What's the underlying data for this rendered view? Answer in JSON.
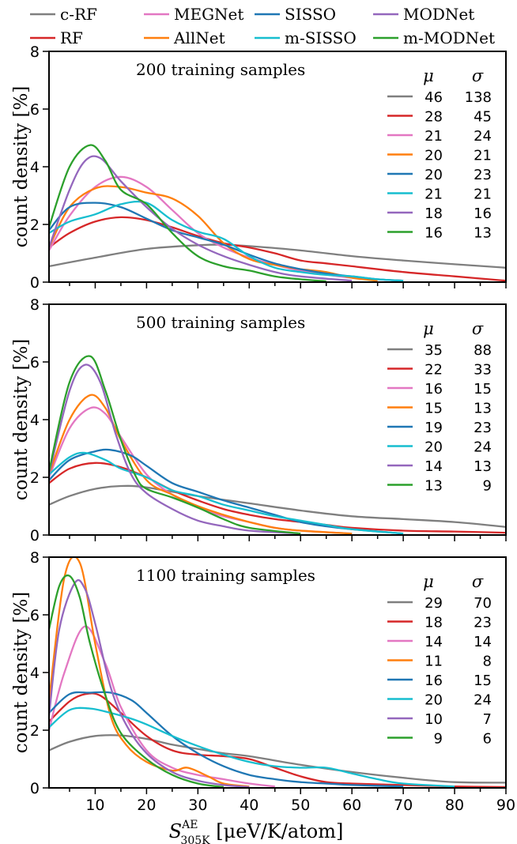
{
  "figure": {
    "x_axis_label_main": "S",
    "x_axis_label_sup": "AE",
    "x_axis_label_sub": "305K",
    "x_axis_label_units": " [μeV/K/atom]",
    "y_axis_label": "count density [%]",
    "mu_header": "μ",
    "sigma_header": "σ"
  },
  "legend": [
    {
      "label": "c-RF",
      "color": "#7f7f7f"
    },
    {
      "label": "MEGNet",
      "color": "#e377c2"
    },
    {
      "label": "SISSO",
      "color": "#1f77b4"
    },
    {
      "label": "MODNet",
      "color": "#9467bd"
    },
    {
      "label": "RF",
      "color": "#d62728"
    },
    {
      "label": "AllNet",
      "color": "#ff7f0e"
    },
    {
      "label": "m-SISSO",
      "color": "#17becf"
    },
    {
      "label": "m-MODNet",
      "color": "#2ca02c"
    }
  ],
  "chart_data": [
    {
      "type": "line",
      "title": "200 training samples",
      "xlabel": "",
      "ylabel": "count density [%]",
      "xlim": [
        1,
        90
      ],
      "ylim": [
        0,
        8
      ],
      "x_ticks": [
        "10",
        "20",
        "30",
        "40",
        "50",
        "60",
        "70",
        "80",
        "90"
      ],
      "y_ticks": [
        "0",
        "2",
        "4",
        "6",
        "8"
      ],
      "series": [
        {
          "name": "c-RF",
          "color": "#7f7f7f",
          "mu": "46",
          "sigma": "138",
          "x": [
            1,
            10,
            20,
            30,
            35,
            40,
            50,
            60,
            70,
            80,
            90
          ],
          "y": [
            0.55,
            0.85,
            1.15,
            1.28,
            1.3,
            1.25,
            1.1,
            0.9,
            0.75,
            0.62,
            0.5
          ]
        },
        {
          "name": "RF",
          "color": "#d62728",
          "mu": "28",
          "sigma": "45",
          "x": [
            1,
            5,
            10,
            15,
            20,
            25,
            30,
            35,
            40,
            45,
            50,
            55,
            60,
            70,
            80,
            90
          ],
          "y": [
            1.2,
            1.7,
            2.1,
            2.25,
            2.15,
            1.9,
            1.6,
            1.35,
            1.2,
            1.0,
            0.75,
            0.65,
            0.55,
            0.35,
            0.2,
            0.05
          ]
        },
        {
          "name": "MEGNet",
          "color": "#e377c2",
          "mu": "21",
          "sigma": "24",
          "x": [
            1,
            5,
            10,
            15,
            20,
            25,
            30,
            35,
            40,
            45,
            50,
            60,
            70
          ],
          "y": [
            1.1,
            2.3,
            3.3,
            3.65,
            3.3,
            2.5,
            1.7,
            1.2,
            0.85,
            0.6,
            0.4,
            0.15,
            0.05
          ]
        },
        {
          "name": "AllNet",
          "color": "#ff7f0e",
          "mu": "20",
          "sigma": "21",
          "x": [
            1,
            5,
            10,
            15,
            20,
            25,
            30,
            35,
            40,
            45,
            50,
            55,
            60,
            65
          ],
          "y": [
            1.2,
            2.6,
            3.25,
            3.3,
            3.1,
            2.9,
            2.3,
            1.35,
            0.8,
            0.6,
            0.45,
            0.35,
            0.15,
            0.05
          ]
        },
        {
          "name": "SISSO",
          "color": "#1f77b4",
          "mu": "20",
          "sigma": "23",
          "x": [
            1,
            5,
            10,
            15,
            20,
            25,
            30,
            35,
            40,
            45,
            50,
            55,
            60,
            65,
            70
          ],
          "y": [
            1.8,
            2.6,
            2.75,
            2.6,
            2.2,
            1.8,
            1.55,
            1.3,
            0.95,
            0.65,
            0.45,
            0.3,
            0.2,
            0.1,
            0.05
          ]
        },
        {
          "name": "m-SISSO",
          "color": "#17becf",
          "mu": "21",
          "sigma": "21",
          "x": [
            1,
            5,
            10,
            15,
            20,
            25,
            30,
            35,
            40,
            45,
            50,
            55,
            60,
            65,
            70
          ],
          "y": [
            1.7,
            2.1,
            2.35,
            2.7,
            2.75,
            2.15,
            1.75,
            1.5,
            0.9,
            0.5,
            0.35,
            0.25,
            0.2,
            0.1,
            0.05
          ]
        },
        {
          "name": "MODNet",
          "color": "#9467bd",
          "mu": "18",
          "sigma": "16",
          "x": [
            1,
            5,
            8,
            11,
            15,
            20,
            25,
            30,
            35,
            40,
            45,
            50,
            60
          ],
          "y": [
            1.2,
            3.2,
            4.2,
            4.3,
            3.5,
            2.6,
            1.85,
            1.3,
            0.9,
            0.6,
            0.35,
            0.2,
            0.05
          ]
        },
        {
          "name": "m-MODNet",
          "color": "#2ca02c",
          "mu": "16",
          "sigma": "13",
          "x": [
            1,
            5,
            9,
            12,
            15,
            20,
            25,
            30,
            35,
            40,
            45,
            50,
            55
          ],
          "y": [
            1.9,
            4.0,
            4.75,
            4.2,
            3.2,
            2.7,
            1.7,
            0.9,
            0.55,
            0.4,
            0.2,
            0.1,
            0.03
          ]
        }
      ]
    },
    {
      "type": "line",
      "title": "500 training samples",
      "xlabel": "",
      "ylabel": "count density [%]",
      "xlim": [
        1,
        90
      ],
      "ylim": [
        0,
        8
      ],
      "x_ticks": [
        "10",
        "20",
        "30",
        "40",
        "50",
        "60",
        "70",
        "80",
        "90"
      ],
      "y_ticks": [
        "0",
        "2",
        "4",
        "6",
        "8"
      ],
      "series": [
        {
          "name": "c-RF",
          "color": "#7f7f7f",
          "mu": "35",
          "sigma": "88",
          "x": [
            1,
            5,
            10,
            15,
            20,
            30,
            40,
            50,
            60,
            70,
            80,
            90
          ],
          "y": [
            1.05,
            1.35,
            1.6,
            1.7,
            1.65,
            1.35,
            1.1,
            0.85,
            0.65,
            0.55,
            0.45,
            0.28
          ]
        },
        {
          "name": "RF",
          "color": "#d62728",
          "mu": "22",
          "sigma": "33",
          "x": [
            1,
            5,
            10,
            15,
            20,
            25,
            30,
            35,
            40,
            45,
            50,
            55,
            60,
            70,
            80,
            90
          ],
          "y": [
            1.8,
            2.3,
            2.5,
            2.35,
            2.0,
            1.55,
            1.2,
            0.9,
            0.7,
            0.55,
            0.45,
            0.35,
            0.25,
            0.15,
            0.12,
            0.08
          ]
        },
        {
          "name": "MEGNet",
          "color": "#e377c2",
          "mu": "16",
          "sigma": "15",
          "x": [
            1,
            5,
            9,
            12,
            15,
            20,
            25,
            30,
            35,
            40,
            45,
            50,
            60
          ],
          "y": [
            2.0,
            3.7,
            4.4,
            4.2,
            3.4,
            2.1,
            1.4,
            0.95,
            0.65,
            0.45,
            0.25,
            0.15,
            0.05
          ]
        },
        {
          "name": "AllNet",
          "color": "#ff7f0e",
          "mu": "15",
          "sigma": "13",
          "x": [
            1,
            5,
            9,
            12,
            15,
            20,
            25,
            30,
            35,
            40,
            45,
            50,
            60
          ],
          "y": [
            2.1,
            4.0,
            4.85,
            4.4,
            3.3,
            1.9,
            1.4,
            1.0,
            0.7,
            0.45,
            0.25,
            0.15,
            0.05
          ]
        },
        {
          "name": "SISSO",
          "color": "#1f77b4",
          "mu": "19",
          "sigma": "23",
          "x": [
            1,
            5,
            10,
            13,
            17,
            20,
            25,
            30,
            35,
            40,
            45,
            50,
            55,
            60,
            70
          ],
          "y": [
            1.9,
            2.6,
            2.9,
            2.95,
            2.75,
            2.4,
            1.8,
            1.5,
            1.2,
            0.95,
            0.7,
            0.45,
            0.3,
            0.2,
            0.05
          ]
        },
        {
          "name": "m-SISSO",
          "color": "#17becf",
          "mu": "20",
          "sigma": "24",
          "x": [
            1,
            5,
            8,
            12,
            15,
            20,
            25,
            30,
            35,
            40,
            45,
            50,
            55,
            60,
            70
          ],
          "y": [
            2.1,
            2.7,
            2.85,
            2.6,
            2.3,
            2.0,
            1.55,
            1.35,
            1.05,
            0.85,
            0.65,
            0.5,
            0.35,
            0.2,
            0.05
          ]
        },
        {
          "name": "MODNet",
          "color": "#9467bd",
          "mu": "14",
          "sigma": "13",
          "x": [
            1,
            5,
            8,
            11,
            14,
            17,
            20,
            25,
            30,
            35,
            40,
            50
          ],
          "y": [
            2.1,
            5.0,
            5.9,
            5.3,
            3.5,
            2.1,
            1.45,
            0.9,
            0.5,
            0.3,
            0.15,
            0.05
          ]
        },
        {
          "name": "m-MODNet",
          "color": "#2ca02c",
          "mu": "13",
          "sigma": "9",
          "x": [
            1,
            5,
            9,
            12,
            15,
            18,
            20,
            25,
            30,
            35,
            40,
            50
          ],
          "y": [
            2.2,
            5.3,
            6.2,
            5.0,
            3.3,
            2.0,
            1.6,
            1.3,
            0.95,
            0.55,
            0.25,
            0.05
          ]
        }
      ]
    },
    {
      "type": "line",
      "title": "1100 training samples",
      "xlabel": "S^AE_305K [μeV/K/atom]",
      "ylabel": "count density [%]",
      "xlim": [
        1,
        90
      ],
      "ylim": [
        0,
        8
      ],
      "x_ticks": [
        "10",
        "20",
        "30",
        "40",
        "50",
        "60",
        "70",
        "80",
        "90"
      ],
      "y_ticks": [
        "0",
        "2",
        "4",
        "6",
        "8"
      ],
      "series": [
        {
          "name": "c-RF",
          "color": "#7f7f7f",
          "mu": "29",
          "sigma": "70",
          "x": [
            1,
            5,
            10,
            15,
            20,
            25,
            30,
            35,
            40,
            50,
            60,
            70,
            80,
            90
          ],
          "y": [
            1.3,
            1.6,
            1.8,
            1.82,
            1.7,
            1.5,
            1.35,
            1.2,
            1.1,
            0.8,
            0.55,
            0.35,
            0.2,
            0.18
          ]
        },
        {
          "name": "RF",
          "color": "#d62728",
          "mu": "18",
          "sigma": "23",
          "x": [
            1,
            5,
            8,
            11,
            15,
            20,
            25,
            30,
            35,
            40,
            45,
            50,
            55,
            60,
            70,
            80,
            90
          ],
          "y": [
            2.3,
            3.0,
            3.25,
            3.2,
            2.6,
            1.8,
            1.3,
            1.15,
            1.1,
            1.0,
            0.7,
            0.4,
            0.2,
            0.15,
            0.1,
            0.05,
            0.03
          ]
        },
        {
          "name": "MEGNet",
          "color": "#e377c2",
          "mu": "14",
          "sigma": "14",
          "x": [
            1,
            4,
            8,
            12,
            15,
            20,
            25,
            30,
            35,
            40,
            45
          ],
          "y": [
            2.0,
            4.0,
            5.6,
            4.3,
            2.8,
            1.3,
            0.7,
            0.45,
            0.3,
            0.15,
            0.05
          ]
        },
        {
          "name": "AllNet",
          "color": "#ff7f0e",
          "mu": "11",
          "sigma": "8",
          "x": [
            1,
            4,
            7,
            10,
            13,
            16,
            20,
            25,
            28,
            32,
            35,
            40
          ],
          "y": [
            3.0,
            7.3,
            7.8,
            5.0,
            2.5,
            1.5,
            0.9,
            0.6,
            0.7,
            0.4,
            0.15,
            0.05
          ]
        },
        {
          "name": "SISSO",
          "color": "#1f77b4",
          "mu": "16",
          "sigma": "15",
          "x": [
            1,
            5,
            9,
            13,
            17,
            20,
            25,
            30,
            35,
            40,
            45,
            50,
            55,
            60,
            70
          ],
          "y": [
            2.6,
            3.25,
            3.3,
            3.3,
            3.05,
            2.6,
            1.8,
            1.2,
            0.75,
            0.45,
            0.3,
            0.2,
            0.15,
            0.1,
            0.05
          ]
        },
        {
          "name": "m-SISSO",
          "color": "#17becf",
          "mu": "20",
          "sigma": "24",
          "x": [
            1,
            5,
            9,
            13,
            17,
            20,
            25,
            30,
            35,
            40,
            45,
            50,
            55,
            60,
            65,
            70,
            80
          ],
          "y": [
            2.1,
            2.7,
            2.75,
            2.6,
            2.4,
            2.2,
            1.8,
            1.45,
            1.15,
            0.9,
            0.75,
            0.7,
            0.7,
            0.5,
            0.3,
            0.15,
            0.05
          ]
        },
        {
          "name": "MODNet",
          "color": "#9467bd",
          "mu": "10",
          "sigma": "7",
          "x": [
            1,
            3,
            6,
            8,
            10,
            13,
            16,
            20,
            25,
            30,
            35,
            40
          ],
          "y": [
            2.5,
            5.5,
            7.1,
            6.9,
            5.7,
            3.5,
            2.2,
            1.2,
            0.55,
            0.25,
            0.1,
            0.03
          ]
        },
        {
          "name": "m-MODNet",
          "color": "#2ca02c",
          "mu": "9",
          "sigma": "6",
          "x": [
            1,
            3,
            5,
            7,
            9,
            12,
            15,
            20,
            25,
            30,
            35
          ],
          "y": [
            5.5,
            7.0,
            7.35,
            6.6,
            5.0,
            3.2,
            1.9,
            1.0,
            0.45,
            0.15,
            0.03
          ]
        }
      ]
    }
  ]
}
